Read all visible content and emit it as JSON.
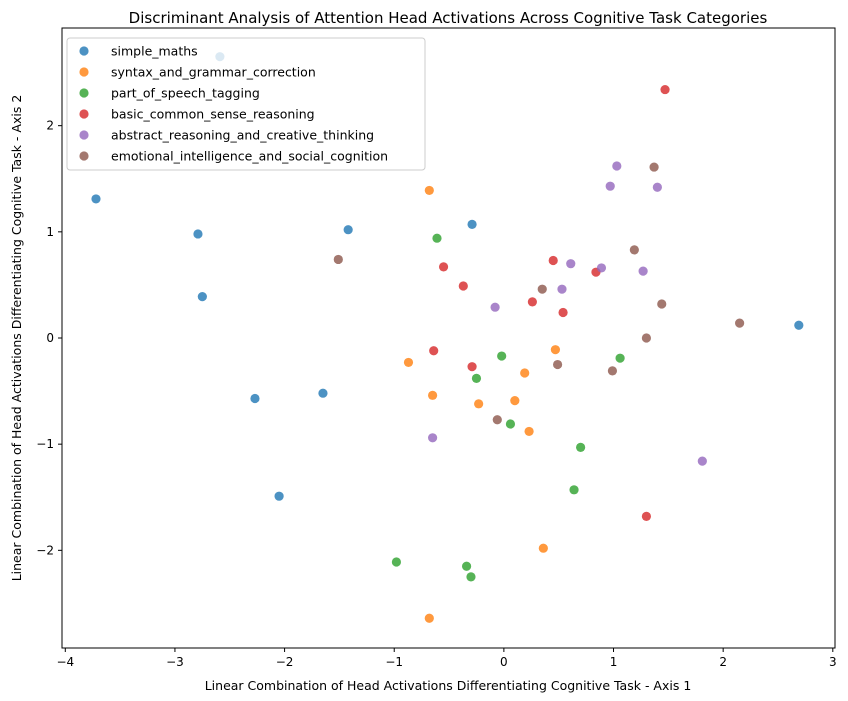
{
  "chart_data": {
    "type": "scatter",
    "title": "Discriminant Analysis of Attention Head Activations Across Cognitive Task Categories",
    "xlabel": "Linear Combination of Head Activations Differentiating Cognitive Task - Axis 1",
    "ylabel": "Linear Combination of Head Activations Differentiating Cognitive Task - Axis 2",
    "xlim": [
      -4.03,
      3.02
    ],
    "ylim": [
      -2.92,
      2.92
    ],
    "xticks": [
      -4,
      -3,
      -2,
      -1,
      0,
      1,
      2,
      3
    ],
    "xtick_labels": [
      "−4",
      "−3",
      "−2",
      "−1",
      "0",
      "1",
      "2",
      "3"
    ],
    "yticks": [
      -2,
      -1,
      0,
      1,
      2
    ],
    "ytick_labels": [
      "−2",
      "−1",
      "0",
      "1",
      "2"
    ],
    "grid": false,
    "legend_position": "top-left",
    "series": [
      {
        "name": "simple_maths",
        "color": "#1f77b4",
        "points": [
          [
            -3.72,
            1.31
          ],
          [
            -2.79,
            0.98
          ],
          [
            -2.75,
            0.39
          ],
          [
            -2.27,
            -0.57
          ],
          [
            -2.05,
            -1.49
          ],
          [
            -1.65,
            -0.52
          ],
          [
            -1.42,
            1.02
          ],
          [
            -0.29,
            1.07
          ],
          [
            -2.59,
            2.65
          ],
          [
            2.69,
            0.12
          ]
        ]
      },
      {
        "name": "syntax_and_grammar_correction",
        "color": "#ff7f0e",
        "points": [
          [
            -0.68,
            1.39
          ],
          [
            -0.87,
            -0.23
          ],
          [
            -0.65,
            -0.54
          ],
          [
            -0.23,
            -0.62
          ],
          [
            0.1,
            -0.59
          ],
          [
            0.19,
            -0.33
          ],
          [
            0.23,
            -0.88
          ],
          [
            0.47,
            -0.11
          ],
          [
            0.36,
            -1.98
          ],
          [
            -0.68,
            -2.64
          ]
        ]
      },
      {
        "name": "part_of_speech_tagging",
        "color": "#2ca02c",
        "points": [
          [
            -0.61,
            0.94
          ],
          [
            -0.02,
            -0.17
          ],
          [
            -0.25,
            -0.38
          ],
          [
            0.06,
            -0.81
          ],
          [
            0.7,
            -1.03
          ],
          [
            1.06,
            -0.19
          ],
          [
            0.64,
            -1.43
          ],
          [
            -0.98,
            -2.11
          ],
          [
            -0.34,
            -2.15
          ],
          [
            -0.3,
            -2.25
          ]
        ]
      },
      {
        "name": "basic_common_sense_reasoning",
        "color": "#d62728",
        "points": [
          [
            1.47,
            2.34
          ],
          [
            -0.55,
            0.67
          ],
          [
            -0.37,
            0.49
          ],
          [
            0.45,
            0.73
          ],
          [
            0.26,
            0.34
          ],
          [
            0.54,
            0.24
          ],
          [
            0.84,
            0.62
          ],
          [
            -0.64,
            -0.12
          ],
          [
            -0.29,
            -0.27
          ],
          [
            1.3,
            -1.68
          ]
        ]
      },
      {
        "name": "abstract_reasoning_and_creative_thinking",
        "color": "#9467bd",
        "points": [
          [
            1.03,
            1.62
          ],
          [
            0.97,
            1.43
          ],
          [
            1.4,
            1.42
          ],
          [
            0.61,
            0.7
          ],
          [
            0.89,
            0.66
          ],
          [
            1.27,
            0.63
          ],
          [
            0.53,
            0.46
          ],
          [
            -0.08,
            0.29
          ],
          [
            -0.65,
            -0.94
          ],
          [
            1.81,
            -1.16
          ]
        ]
      },
      {
        "name": "emotional_intelligence_and_social_cognition",
        "color": "#8c564b",
        "points": [
          [
            1.37,
            1.61
          ],
          [
            -1.51,
            0.74
          ],
          [
            1.19,
            0.83
          ],
          [
            0.35,
            0.46
          ],
          [
            1.44,
            0.32
          ],
          [
            2.15,
            0.14
          ],
          [
            1.3,
            0.0
          ],
          [
            0.49,
            -0.25
          ],
          [
            0.99,
            -0.31
          ],
          [
            -0.06,
            -0.77
          ]
        ]
      }
    ]
  }
}
